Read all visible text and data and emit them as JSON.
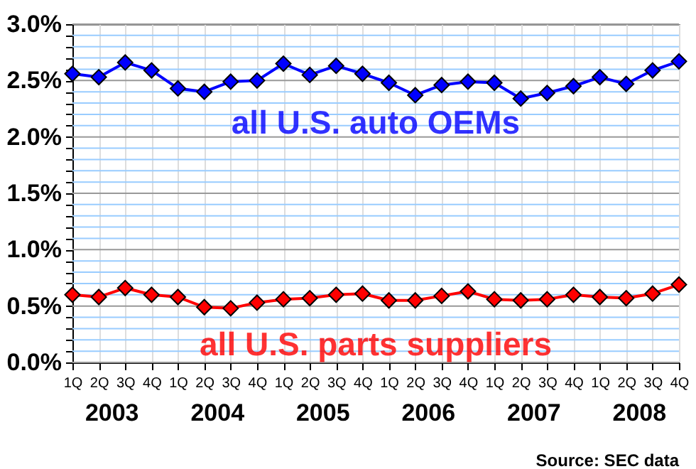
{
  "chart_data": {
    "type": "line",
    "categories": [
      "1Q",
      "2Q",
      "3Q",
      "4Q",
      "1Q",
      "2Q",
      "3Q",
      "4Q",
      "1Q",
      "2Q",
      "3Q",
      "4Q",
      "1Q",
      "2Q",
      "3Q",
      "4Q",
      "1Q",
      "2Q",
      "3Q",
      "4Q",
      "1Q",
      "2Q",
      "3Q",
      "4Q"
    ],
    "series": [
      {
        "name": "all U.S. auto OEMs",
        "color": "#0000ff",
        "values": [
          2.56,
          2.53,
          2.66,
          2.59,
          2.43,
          2.4,
          2.49,
          2.5,
          2.65,
          2.55,
          2.63,
          2.56,
          2.48,
          2.37,
          2.46,
          2.49,
          2.48,
          2.34,
          2.39,
          2.45,
          2.53,
          2.47,
          2.59,
          2.67
        ]
      },
      {
        "name": "all U.S. parts suppliers",
        "color": "#ff0000",
        "values": [
          0.6,
          0.58,
          0.66,
          0.6,
          0.58,
          0.49,
          0.48,
          0.53,
          0.56,
          0.57,
          0.6,
          0.61,
          0.55,
          0.55,
          0.59,
          0.63,
          0.56,
          0.55,
          0.56,
          0.6,
          0.58,
          0.57,
          0.61,
          0.69
        ]
      }
    ],
    "ylim": [
      0,
      3.0
    ],
    "yticks": [
      {
        "value": 0,
        "label": "0.0%"
      },
      {
        "value": 0.1,
        "label": null
      },
      {
        "value": 0.2,
        "label": null
      },
      {
        "value": 0.3,
        "label": null
      },
      {
        "value": 0.4,
        "label": null
      },
      {
        "value": 0.5,
        "label": "0.5%"
      },
      {
        "value": 0.6,
        "label": null
      },
      {
        "value": 0.7,
        "label": null
      },
      {
        "value": 0.8,
        "label": null
      },
      {
        "value": 0.9,
        "label": null
      },
      {
        "value": 1.0,
        "label": "1.0%"
      },
      {
        "value": 1.1,
        "label": null
      },
      {
        "value": 1.2,
        "label": null
      },
      {
        "value": 1.3,
        "label": null
      },
      {
        "value": 1.4,
        "label": null
      },
      {
        "value": 1.5,
        "label": "1.5%"
      },
      {
        "value": 1.6,
        "label": null
      },
      {
        "value": 1.7,
        "label": null
      },
      {
        "value": 1.8,
        "label": null
      },
      {
        "value": 1.9,
        "label": null
      },
      {
        "value": 2.0,
        "label": "2.0%"
      },
      {
        "value": 2.1,
        "label": null
      },
      {
        "value": 2.2,
        "label": null
      },
      {
        "value": 2.3,
        "label": null
      },
      {
        "value": 2.4,
        "label": null
      },
      {
        "value": 2.5,
        "label": "2.5%"
      },
      {
        "value": 2.6,
        "label": null
      },
      {
        "value": 2.7,
        "label": null
      },
      {
        "value": 2.8,
        "label": null
      },
      {
        "value": 2.9,
        "label": null
      },
      {
        "value": 3.0,
        "label": "3.0%"
      }
    ],
    "grid": true,
    "marker": "diamond",
    "annotations": [
      "2003",
      "2004",
      "2005",
      "2006",
      "2007",
      "2008",
      "Source: SEC data"
    ]
  }
}
